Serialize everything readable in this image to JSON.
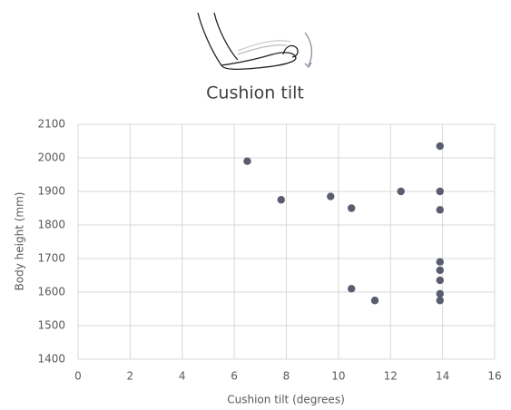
{
  "chart_data": {
    "type": "scatter",
    "title": "Cushion tilt",
    "x_label": "Cushion tilt (degrees)",
    "y_label": "Body height (mm)",
    "x": [
      6.5,
      7.8,
      9.7,
      10.5,
      12.4,
      13.9,
      13.9,
      13.9,
      13.9,
      13.9,
      13.9,
      13.9,
      13.9,
      10.5,
      11.4
    ],
    "values": [
      1990,
      1875,
      1885,
      1850,
      1900,
      2035,
      1900,
      1845,
      1690,
      1665,
      1635,
      1595,
      1575,
      1610,
      1575
    ],
    "color": "#5a5d6e",
    "xlim": [
      0,
      16
    ],
    "xticks": [
      0,
      2,
      4,
      6,
      8,
      10,
      12,
      14,
      16
    ],
    "ylim": [
      1400,
      2100
    ],
    "yticks": [
      1400,
      1500,
      1600,
      1700,
      1800,
      1900,
      2000,
      2100
    ],
    "grid": true
  }
}
